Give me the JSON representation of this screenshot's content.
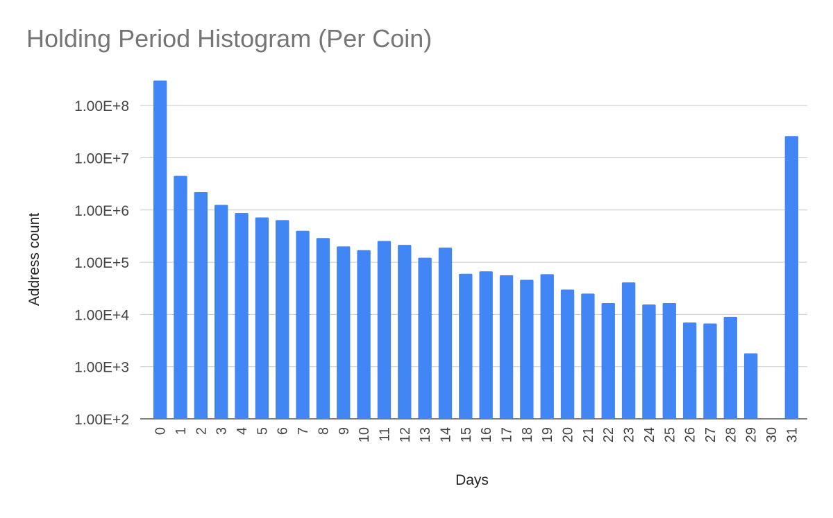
{
  "chart_data": {
    "type": "bar",
    "title": "Holding Period Histogram (Per Coin)",
    "xlabel": "Days",
    "ylabel": "Address count",
    "y_scale": "log",
    "ylim": [
      100,
      300000000
    ],
    "y_ticks": [
      100,
      1000,
      10000,
      100000,
      1000000,
      10000000,
      100000000
    ],
    "y_tick_labels": [
      "1.00E+2",
      "1.00E+3",
      "1.00E+4",
      "1.00E+5",
      "1.00E+6",
      "1.00E+7",
      "1.00E+8"
    ],
    "grid": true,
    "bar_color": "#4285f4",
    "categories": [
      "0",
      "1",
      "2",
      "3",
      "4",
      "5",
      "6",
      "7",
      "8",
      "9",
      "10",
      "11",
      "12",
      "13",
      "14",
      "15",
      "16",
      "17",
      "18",
      "19",
      "20",
      "21",
      "22",
      "23",
      "24",
      "25",
      "26",
      "27",
      "28",
      "29",
      "30",
      "31"
    ],
    "values": [
      300000000,
      4500000,
      2200000,
      1250000,
      880000,
      720000,
      640000,
      400000,
      290000,
      200000,
      170000,
      255000,
      215000,
      122000,
      190000,
      60000,
      67000,
      56000,
      46000,
      59000,
      30000,
      25000,
      16500,
      41000,
      15500,
      16500,
      7000,
      6700,
      9000,
      1800,
      null,
      26000000
    ]
  }
}
